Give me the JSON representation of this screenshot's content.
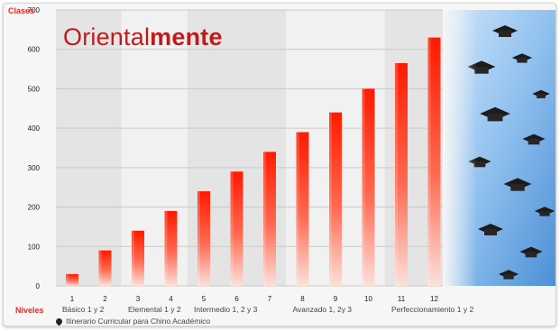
{
  "logo": {
    "text_regular": "Oriental",
    "text_bold": "mente"
  },
  "legend_text": "Itinerario Curricular para Chino Académico",
  "colors": {
    "bar_top": "#ff1a00",
    "bar_bottom": "#fbe0da",
    "accent": "#d7322d"
  },
  "chart_data": {
    "type": "bar",
    "ylabel": "Clases",
    "xlabel": "Niveles",
    "ylim": [
      0,
      700
    ],
    "y_ticks": [
      0,
      100,
      200,
      300,
      400,
      500,
      600,
      700
    ],
    "categories": [
      "1",
      "2",
      "3",
      "4",
      "5",
      "6",
      "7",
      "8",
      "9",
      "10",
      "11",
      "12"
    ],
    "values": [
      30,
      90,
      140,
      190,
      240,
      290,
      340,
      390,
      440,
      500,
      565,
      630
    ],
    "groups": [
      {
        "label": "Básico 1 y 2",
        "from": 0,
        "to": 1
      },
      {
        "label": "Elemental 1 y 2",
        "from": 2,
        "to": 3
      },
      {
        "label": "Intermedio 1, 2 y 3",
        "from": 4,
        "to": 6
      },
      {
        "label": "Avanzado 1, 2y 3",
        "from": 7,
        "to": 9
      },
      {
        "label": "Perfeccionamiento 1 y 2",
        "from": 10,
        "to": 11
      }
    ],
    "grid": true,
    "background_image_description": "graduation caps tossed in the air against blue sky"
  }
}
